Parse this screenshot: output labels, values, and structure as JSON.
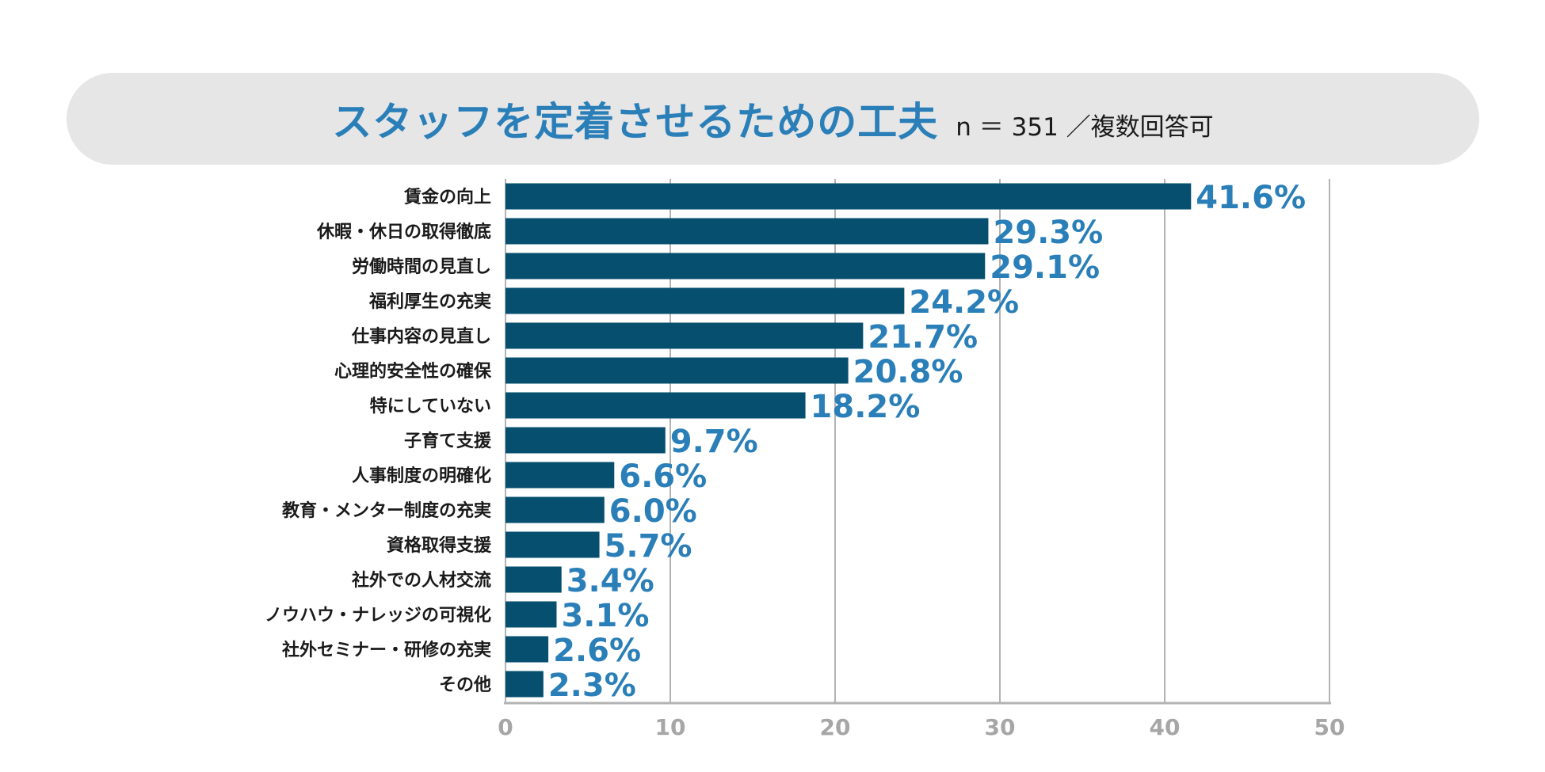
{
  "colors": {
    "bar": "#064f6e",
    "value_label": "#2a7fb8",
    "title": "#2a7fb8",
    "grid": "#b3b3b3",
    "title_background": "#e6e6e6"
  },
  "chart_data": {
    "type": "bar",
    "orientation": "horizontal",
    "title": "スタッフを定着させるための工夫",
    "subtitle": "n ＝ 351 ／複数回答可",
    "categories": [
      "賃金の向上",
      "休暇・休日の取得徹底",
      "労働時間の見直し",
      "福利厚生の充実",
      "仕事内容の見直し",
      "心理的安全性の確保",
      "特にしていない",
      "子育て支援",
      "人事制度の明確化",
      "教育・メンター制度の充実",
      "資格取得支援",
      "社外での人材交流",
      "ノウハウ・ナレッジの可視化",
      "社外セミナー・研修の充実",
      "その他"
    ],
    "values": [
      41.6,
      29.3,
      29.1,
      24.2,
      21.7,
      20.8,
      18.2,
      9.7,
      6.6,
      6.0,
      5.7,
      3.4,
      3.1,
      2.6,
      2.3
    ],
    "value_labels": [
      "41.6%",
      "29.3%",
      "29.1%",
      "24.2%",
      "21.7%",
      "20.8%",
      "18.2%",
      "9.7%",
      "6.6%",
      "6.0%",
      "5.7%",
      "3.4%",
      "3.1%",
      "2.6%",
      "2.3%"
    ],
    "xlim": [
      0,
      50
    ],
    "xticks": [
      0,
      10,
      20,
      30,
      40,
      50
    ],
    "xtick_labels": [
      "0",
      "10",
      "20",
      "30",
      "40",
      "50"
    ],
    "grid": true,
    "legend": "none"
  }
}
